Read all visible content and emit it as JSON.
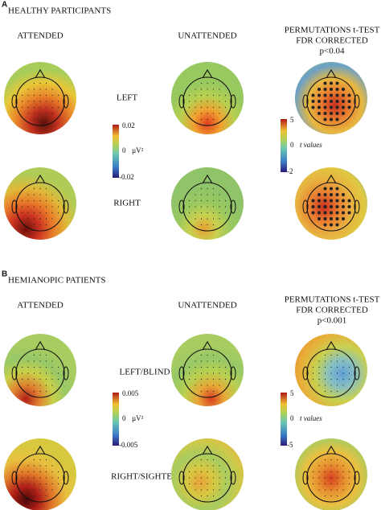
{
  "panels": [
    {
      "label": "A",
      "title": "HEALTHY PARTICIPANTS",
      "columns": [
        "ATTENDED",
        "UNATTENDED"
      ],
      "test": [
        "PERMUTATIONS t-TEST",
        "FDR CORRECTED",
        "p<0.04"
      ],
      "rows": [
        "LEFT",
        "RIGHT"
      ],
      "colorbar": {
        "max": "0.02",
        "mid": "0",
        "unit": "µV²",
        "min": "-0.02"
      },
      "tbar": {
        "max": "5",
        "mid": "0",
        "unit": "t values",
        "min": "-2"
      }
    },
    {
      "label": "B",
      "title": "HEMIANOPIC PATIENTS",
      "columns": [
        "ATTENDED",
        "UNATTENDED"
      ],
      "test": [
        "PERMUTATIONS t-TEST",
        "FDR CORRECTED",
        "p<0.001"
      ],
      "rows": [
        "LEFT/BLIND",
        "RIGHT/SIGHTED"
      ],
      "colorbar": {
        "max": "0.005",
        "mid": "0",
        "unit": "µV²",
        "min": "-0.005"
      },
      "tbar": {
        "max": "5",
        "mid": "0",
        "unit": "t values",
        "min": "-5"
      }
    }
  ]
}
